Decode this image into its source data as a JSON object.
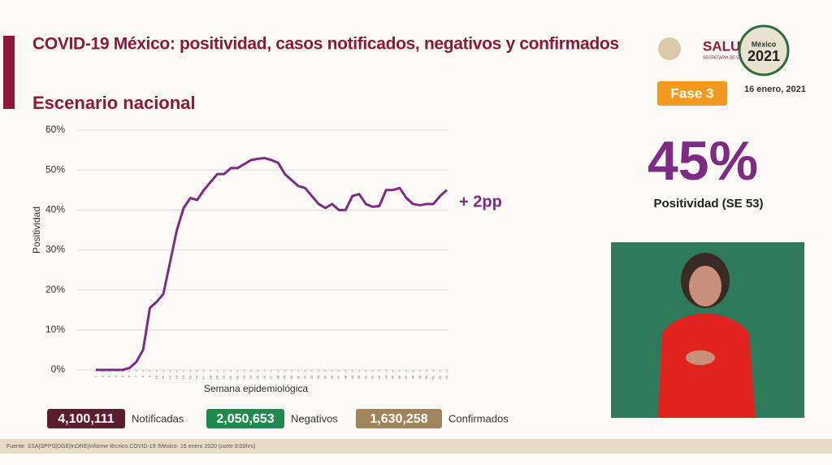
{
  "chart_data": {
    "type": "line",
    "title": "COVID-19 México: positividad, casos notificados, negativos y confirmados",
    "subtitle": "Escenario nacional",
    "y_label": "Positividad",
    "x_label": "Semana epidemiológica",
    "annotation": "+ 2pp",
    "x": [
      1,
      2,
      3,
      4,
      5,
      6,
      7,
      8,
      9,
      10,
      11,
      12,
      13,
      14,
      15,
      16,
      17,
      18,
      19,
      20,
      21,
      22,
      23,
      24,
      25,
      26,
      27,
      28,
      29,
      30,
      31,
      32,
      33,
      34,
      35,
      36,
      37,
      38,
      39,
      40,
      41,
      42,
      43,
      44,
      45,
      46,
      47,
      48,
      49,
      50,
      51,
      52,
      53
    ],
    "series": [
      {
        "name": "Positividad",
        "color": "#7d2c84",
        "values": [
          0,
          0,
          0,
          0,
          0,
          0.5,
          2,
          5,
          15.5,
          17,
          19,
          27,
          35,
          40.5,
          43,
          42.5,
          45,
          47,
          49,
          49,
          50.5,
          50.5,
          51.5,
          52.5,
          52.8,
          53,
          52.5,
          51.8,
          49,
          47.5,
          46,
          45.5,
          43.5,
          41.5,
          40.5,
          41.5,
          40,
          40,
          43.5,
          44,
          41.5,
          40.8,
          41,
          45,
          45,
          45.5,
          43,
          41.5,
          41.2,
          41.5,
          41.5,
          43.5,
          45
        ]
      }
    ],
    "xlim": [
      1,
      53
    ],
    "xticks": [
      1,
      2,
      3,
      4,
      5,
      6,
      7,
      8,
      9,
      10,
      11,
      12,
      13,
      14,
      15,
      16,
      17,
      18,
      19,
      20,
      21,
      22,
      23,
      24,
      25,
      26,
      27,
      28,
      29,
      30,
      31,
      32,
      33,
      34,
      35,
      36,
      37,
      38,
      39,
      40,
      41,
      42,
      43,
      44,
      45,
      46,
      47,
      48,
      49,
      50,
      51,
      52,
      53
    ],
    "ylim": [
      0,
      60
    ],
    "yticks": [
      {
        "value": 0,
        "label": "0%"
      },
      {
        "value": 10,
        "label": "10%"
      },
      {
        "value": 20,
        "label": "20%"
      },
      {
        "value": 30,
        "label": "30%"
      },
      {
        "value": 40,
        "label": "40%"
      },
      {
        "value": 50,
        "label": "50%"
      },
      {
        "value": 60,
        "label": "60%"
      }
    ],
    "grid": true
  },
  "header": {
    "logo": "SALUD",
    "logo_sub": "SECRETARÍA DE SALUD",
    "emblem_top": "México",
    "emblem_year": "2021",
    "phase": "Fase 3",
    "date": "16 enero, 2021"
  },
  "kpi": {
    "value": "45%",
    "label": "Positividad (SE 53)"
  },
  "totals": [
    {
      "value": "4,100,111",
      "label": "Notificadas"
    },
    {
      "value": "2,050,653",
      "label": "Negativos"
    },
    {
      "value": "1,630,258",
      "label": "Confirmados"
    }
  ],
  "footer": {
    "source": "Fuente: SSA|SPPS|DGE|InDRE|Informe técnico.COVID-19 /México- 16 enero 2020 (corte 9:00hrs)"
  }
}
